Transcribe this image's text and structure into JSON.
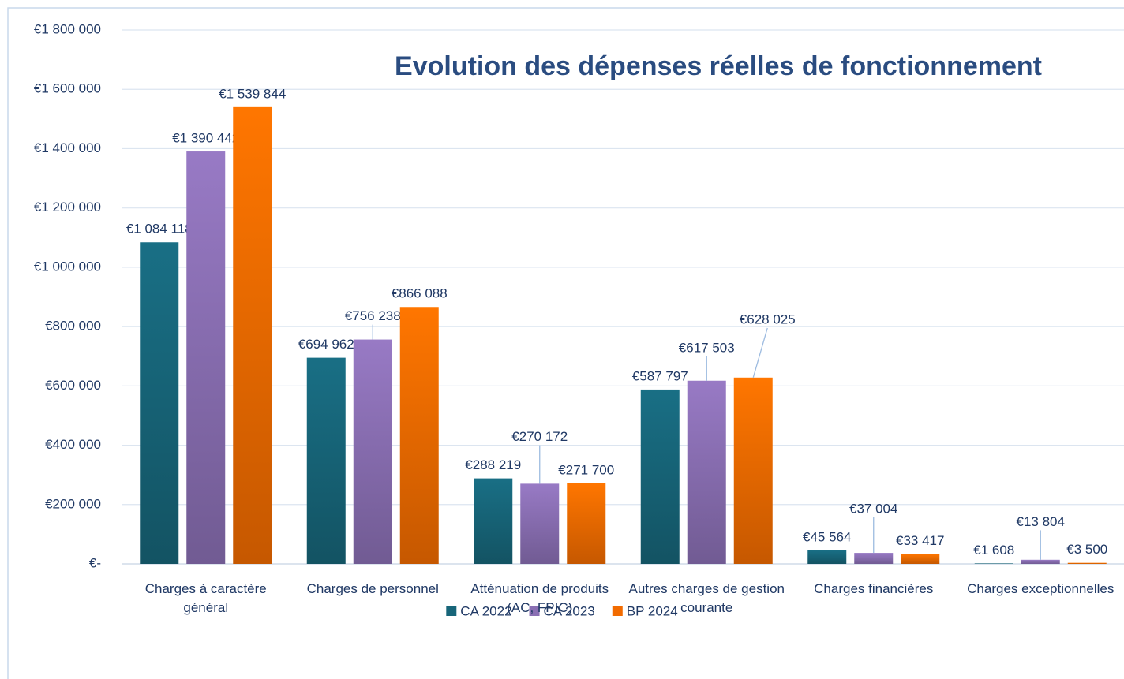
{
  "chart_data": {
    "type": "bar",
    "title": "Evolution des dépenses réelles de fonctionnement",
    "categories": [
      "Charges à caractère général",
      "Charges de personnel",
      "Atténuation de produits (AC, FPIC)",
      "Autres charges de gestion courante",
      "Charges financières",
      "Charges exceptionnelles"
    ],
    "series": [
      {
        "name": "CA 2022",
        "color": "#176579",
        "values": [
          1084118,
          694962,
          288219,
          587797,
          45564,
          1608
        ],
        "value_labels": [
          "€1 084 118",
          "€694 962",
          "€288 219",
          "€587 797",
          "€45 564",
          "€1 608"
        ]
      },
      {
        "name": "CA 2023",
        "color": "#8a6fb3",
        "values": [
          1390442,
          756238,
          270172,
          617503,
          37004,
          13804
        ],
        "value_labels": [
          "€1 390 442",
          "€756 238",
          "€270 172",
          "€617 503",
          "€37 004",
          "€13 804"
        ]
      },
      {
        "name": "BP 2024",
        "color": "#f26b00",
        "values": [
          1539844,
          866088,
          271700,
          628025,
          33417,
          3500
        ],
        "value_labels": [
          "€1 539 844",
          "€866 088",
          "€271 700",
          "€628 025",
          "€33 417",
          "€3 500"
        ]
      }
    ],
    "ylim": [
      0,
      1800000
    ],
    "yticks": [
      {
        "value": 0,
        "label": "€-"
      },
      {
        "value": 200000,
        "label": "€200 000"
      },
      {
        "value": 400000,
        "label": "€400 000"
      },
      {
        "value": 600000,
        "label": "€600 000"
      },
      {
        "value": 800000,
        "label": "€800 000"
      },
      {
        "value": 1000000,
        "label": "€1 000 000"
      },
      {
        "value": 1200000,
        "label": "€1 200 000"
      },
      {
        "value": 1400000,
        "label": "€1 400 000"
      },
      {
        "value": 1600000,
        "label": "€1 600 000"
      },
      {
        "value": 1800000,
        "label": "€1 800 000"
      }
    ],
    "grid": true,
    "legend": "bottom"
  }
}
